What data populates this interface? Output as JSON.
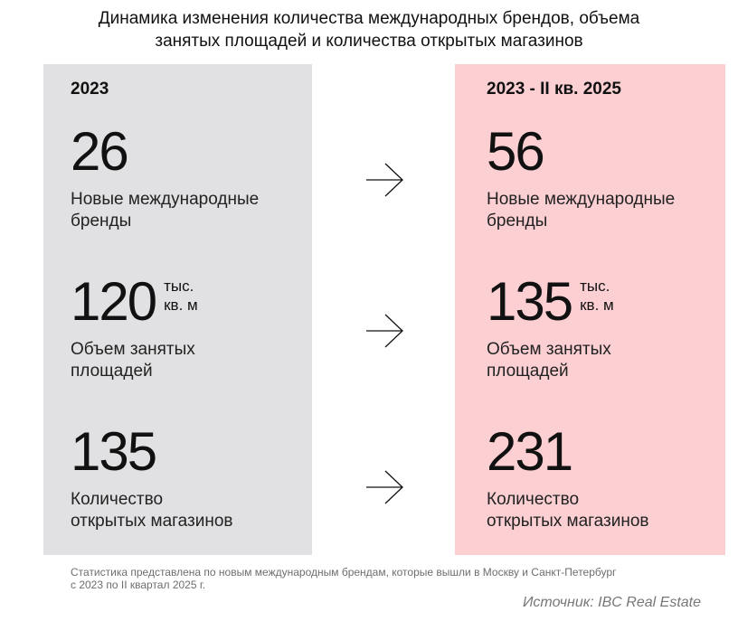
{
  "title": {
    "line1": "Динамика изменения количества международных брендов, объема",
    "line2": "занятых площадей и количества открытых магазинов"
  },
  "left_panel": {
    "period": "2023",
    "metrics": [
      {
        "value": "26",
        "unit_line1": "",
        "unit_line2": "",
        "label_line1": "Новые международные",
        "label_line2": "бренды"
      },
      {
        "value": "120",
        "unit_line1": "тыс.",
        "unit_line2": "кв. м",
        "label_line1": "Объем занятых",
        "label_line2": "площадей"
      },
      {
        "value": "135",
        "unit_line1": "",
        "unit_line2": "",
        "label_line1": "Количество",
        "label_line2": "открытых магазинов"
      }
    ]
  },
  "right_panel": {
    "period": "2023 - II кв. 2025",
    "metrics": [
      {
        "value": "56",
        "unit_line1": "",
        "unit_line2": "",
        "label_line1": "Новые международные",
        "label_line2": "бренды"
      },
      {
        "value": "135",
        "unit_line1": "тыс.",
        "unit_line2": "кв. м",
        "label_line1": "Объем занятых",
        "label_line2": "площадей"
      },
      {
        "value": "231",
        "unit_line1": "",
        "unit_line2": "",
        "label_line1": "Количество",
        "label_line2": "открытых магазинов"
      }
    ]
  },
  "arrows": [
    "arrow-right-icon",
    "arrow-right-icon",
    "arrow-right-icon"
  ],
  "footnote": {
    "line1": "Статистика представлена по новым международным брендам, которые вышли в Москву и Санкт-Петербург",
    "line2": "с 2023 по II квартал 2025 г."
  },
  "source": "Источник: IBC Real Estate",
  "colors": {
    "left_panel_bg": "#e1e1e3",
    "right_panel_bg": "#fccfd3",
    "text": "#111111",
    "footnote_text": "#6e6e6e"
  }
}
